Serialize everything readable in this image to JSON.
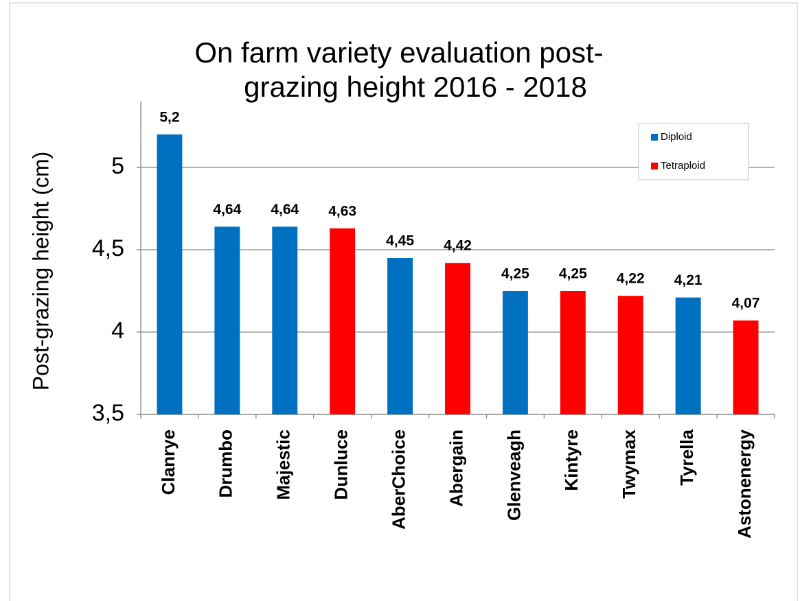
{
  "chart_data": {
    "type": "bar",
    "title": [
      "On farm variety evaluation post-",
      "grazing height 2016 - 2018"
    ],
    "y_label": "Post-grazing height (cm)",
    "categories": [
      "Clanrye",
      "Drumbo",
      "Majestic",
      "Dunluce",
      "AberChoice",
      "Abergain",
      "Glenveagh",
      "Kintyre",
      "Twymax",
      "Tyrella",
      "Astonenergy"
    ],
    "series": [
      {
        "name": "Diploid",
        "color": "#0070c0",
        "values": [
          5.2,
          4.64,
          4.64,
          null,
          4.45,
          null,
          4.25,
          null,
          null,
          4.21,
          null
        ],
        "value_labels": [
          "5,2",
          "4,64",
          "4,64",
          null,
          "4,45",
          null,
          "4,25",
          null,
          null,
          "4,21",
          null
        ]
      },
      {
        "name": "Tetraploid",
        "color": "#ff0000",
        "values": [
          null,
          null,
          null,
          4.63,
          null,
          4.42,
          null,
          4.25,
          4.22,
          null,
          4.07
        ],
        "value_labels": [
          null,
          null,
          null,
          "4,63",
          null,
          "4,42",
          null,
          "4,25",
          "4,22",
          null,
          "4,07"
        ]
      }
    ],
    "ylim": [
      3.5,
      5.4
    ],
    "yticks": [
      {
        "value": 3.5,
        "label": "3,5"
      },
      4,
      {
        "value": 4.5,
        "label": "4,5"
      },
      5
    ],
    "grid": true,
    "legend": "top-right"
  }
}
